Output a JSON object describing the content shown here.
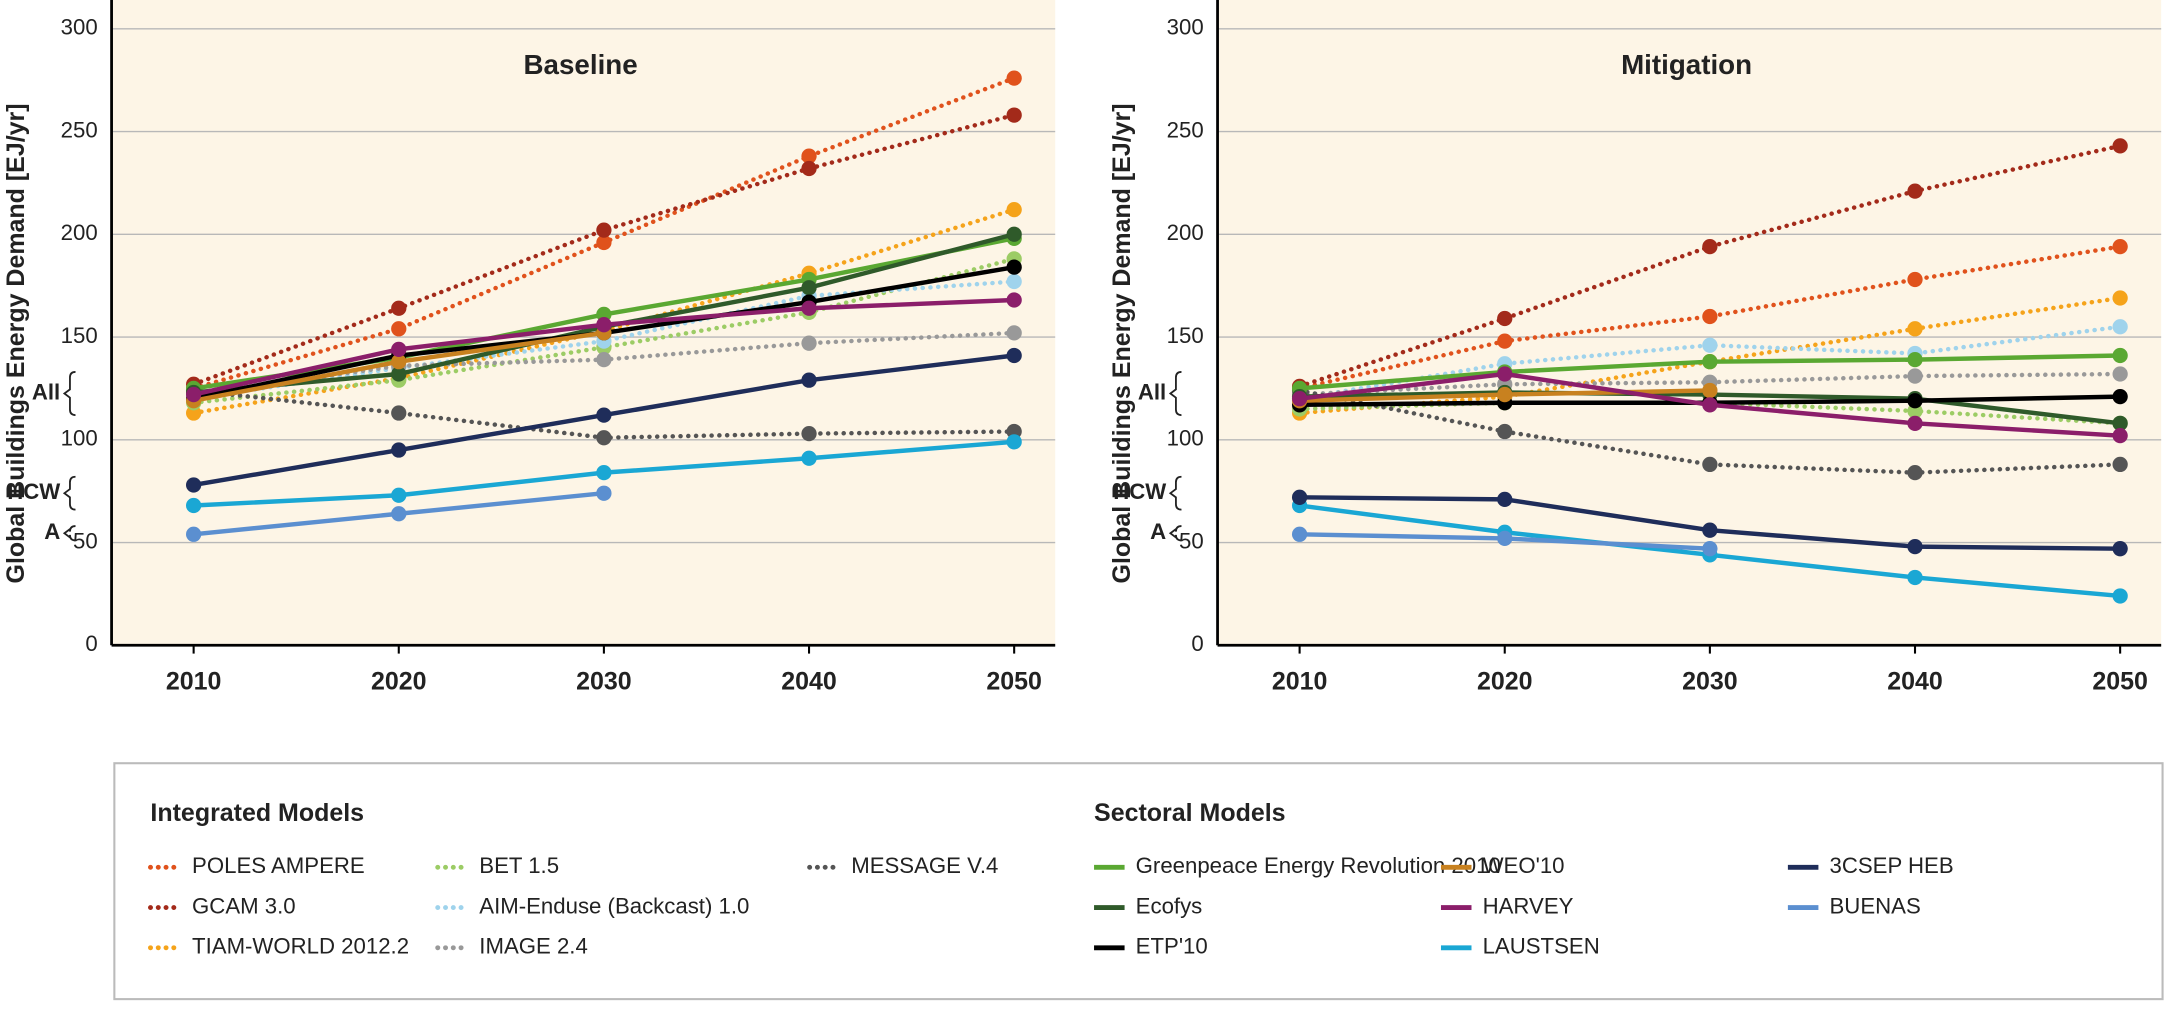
{
  "chart_data": [
    {
      "type": "line",
      "title": "Baseline",
      "ylabel": "Global Buildings Energy Demand [EJ/yr]",
      "x": [
        2010,
        2020,
        2030,
        2040,
        2050
      ],
      "xlim": [
        2006,
        2052
      ],
      "xticks": [
        2010,
        2020,
        2030,
        2040,
        2050
      ],
      "ylim": [
        0,
        314
      ],
      "yticks": [
        0,
        50,
        100,
        150,
        200,
        250,
        300
      ],
      "grid": true,
      "annotations": [
        {
          "text": "All",
          "range": [
            112,
            133
          ]
        },
        {
          "text": "HCW",
          "range": [
            66,
            82
          ]
        },
        {
          "text": "A",
          "range": [
            51,
            58
          ]
        }
      ],
      "series": [
        {
          "name": "POLES AMPERE",
          "color": "#e0521c",
          "style": "dotted",
          "values": [
            125,
            154,
            196,
            238,
            276
          ]
        },
        {
          "name": "GCAM 3.0",
          "color": "#a32a1a",
          "style": "dotted",
          "values": [
            127,
            164,
            202,
            232,
            258
          ]
        },
        {
          "name": "TIAM-WORLD 2012.2",
          "color": "#f5a31a",
          "style": "dotted",
          "values": [
            113,
            130,
            153,
            181,
            212
          ]
        },
        {
          "name": "BET 1.5",
          "color": "#9ccc65",
          "style": "dotted",
          "values": [
            118,
            129,
            145,
            162,
            188
          ]
        },
        {
          "name": "AIM-Enduse (Backcast) 1.0",
          "color": "#9fd3ec",
          "style": "dotted",
          "values": [
            120,
            135,
            148,
            170,
            177
          ]
        },
        {
          "name": "IMAGE 2.4",
          "color": "#999999",
          "style": "dotted",
          "values": [
            122,
            136,
            139,
            147,
            152
          ]
        },
        {
          "name": "MESSAGE V.4",
          "color": "#555555",
          "style": "dotted",
          "values": [
            124,
            113,
            101,
            103,
            104
          ]
        },
        {
          "name": "Greenpeace Energy Revolution 2010",
          "color": "#5aa832",
          "style": "solid",
          "values": [
            125,
            140,
            161,
            178,
            198
          ]
        },
        {
          "name": "Ecofys",
          "color": "#2f5a2a",
          "style": "solid",
          "values": [
            123,
            132,
            155,
            174,
            200
          ]
        },
        {
          "name": "ETP'10",
          "color": "#000000",
          "style": "solid",
          "values": [
            120,
            141,
            152,
            167,
            184
          ]
        },
        {
          "name": "WEO'10",
          "color": "#c8811f",
          "style": "solid",
          "values": [
            119,
            138,
            152,
            null,
            null
          ]
        },
        {
          "name": "HARVEY",
          "color": "#8b1e6a",
          "style": "solid",
          "values": [
            122,
            144,
            156,
            164,
            168
          ]
        },
        {
          "name": "LAUSTSEN",
          "color": "#1aa7d4",
          "style": "solid",
          "values": [
            68,
            73,
            84,
            91,
            99
          ]
        },
        {
          "name": "3CSEP HEB",
          "color": "#1f2d5a",
          "style": "solid",
          "values": [
            78,
            95,
            112,
            129,
            141
          ]
        },
        {
          "name": "BUENAS",
          "color": "#5b8fd0",
          "style": "solid",
          "values": [
            54,
            64,
            74,
            null,
            null
          ]
        }
      ]
    },
    {
      "type": "line",
      "title": "Mitigation",
      "ylabel": "Global Buildings Energy Demand [EJ/yr]",
      "x": [
        2010,
        2020,
        2030,
        2040,
        2050
      ],
      "xlim": [
        2006,
        2052
      ],
      "xticks": [
        2010,
        2020,
        2030,
        2040,
        2050
      ],
      "ylim": [
        0,
        314
      ],
      "yticks": [
        0,
        50,
        100,
        150,
        200,
        250,
        300
      ],
      "grid": true,
      "annotations": [
        {
          "text": "All",
          "range": [
            112,
            133
          ]
        },
        {
          "text": "HCW",
          "range": [
            66,
            82
          ]
        },
        {
          "text": "A",
          "range": [
            51,
            58
          ]
        }
      ],
      "series": [
        {
          "name": "POLES AMPERE",
          "color": "#e0521c",
          "style": "dotted",
          "values": [
            125,
            148,
            160,
            178,
            194
          ]
        },
        {
          "name": "GCAM 3.0",
          "color": "#a32a1a",
          "style": "dotted",
          "values": [
            126,
            159,
            194,
            221,
            243
          ]
        },
        {
          "name": "TIAM-WORLD 2012.2",
          "color": "#f5a31a",
          "style": "dotted",
          "values": [
            113,
            121,
            138,
            154,
            169
          ]
        },
        {
          "name": "BET 1.5",
          "color": "#9ccc65",
          "style": "dotted",
          "values": [
            115,
            118,
            118,
            114,
            108
          ]
        },
        {
          "name": "AIM-Enduse (Backcast) 1.0",
          "color": "#9fd3ec",
          "style": "dotted",
          "values": [
            120,
            137,
            146,
            142,
            155
          ]
        },
        {
          "name": "IMAGE 2.4",
          "color": "#999999",
          "style": "dotted",
          "values": [
            122,
            127,
            128,
            131,
            132
          ]
        },
        {
          "name": "MESSAGE V.4",
          "color": "#555555",
          "style": "dotted",
          "values": [
            124,
            104,
            88,
            84,
            88
          ]
        },
        {
          "name": "Greenpeace Energy Revolution 2010",
          "color": "#5aa832",
          "style": "solid",
          "values": [
            125,
            133,
            138,
            139,
            141
          ]
        },
        {
          "name": "Ecofys",
          "color": "#2f5a2a",
          "style": "solid",
          "values": [
            121,
            123,
            122,
            120,
            108
          ]
        },
        {
          "name": "ETP'10",
          "color": "#000000",
          "style": "solid",
          "values": [
            117,
            118,
            118,
            119,
            121
          ]
        },
        {
          "name": "WEO'10",
          "color": "#c8811f",
          "style": "solid",
          "values": [
            119,
            122,
            124,
            null,
            null
          ]
        },
        {
          "name": "HARVEY",
          "color": "#8b1e6a",
          "style": "solid",
          "values": [
            120,
            132,
            117,
            108,
            102
          ]
        },
        {
          "name": "LAUSTSEN",
          "color": "#1aa7d4",
          "style": "solid",
          "values": [
            68,
            55,
            44,
            33,
            24
          ]
        },
        {
          "name": "3CSEP HEB",
          "color": "#1f2d5a",
          "style": "solid",
          "values": [
            72,
            71,
            56,
            48,
            47
          ]
        },
        {
          "name": "BUENAS",
          "color": "#5b8fd0",
          "style": "solid",
          "values": [
            54,
            52,
            47,
            null,
            null
          ]
        }
      ]
    }
  ],
  "legend": [
    {
      "title": "Integrated Models"
    },
    {
      "title": "Sectoral Models"
    }
  ]
}
